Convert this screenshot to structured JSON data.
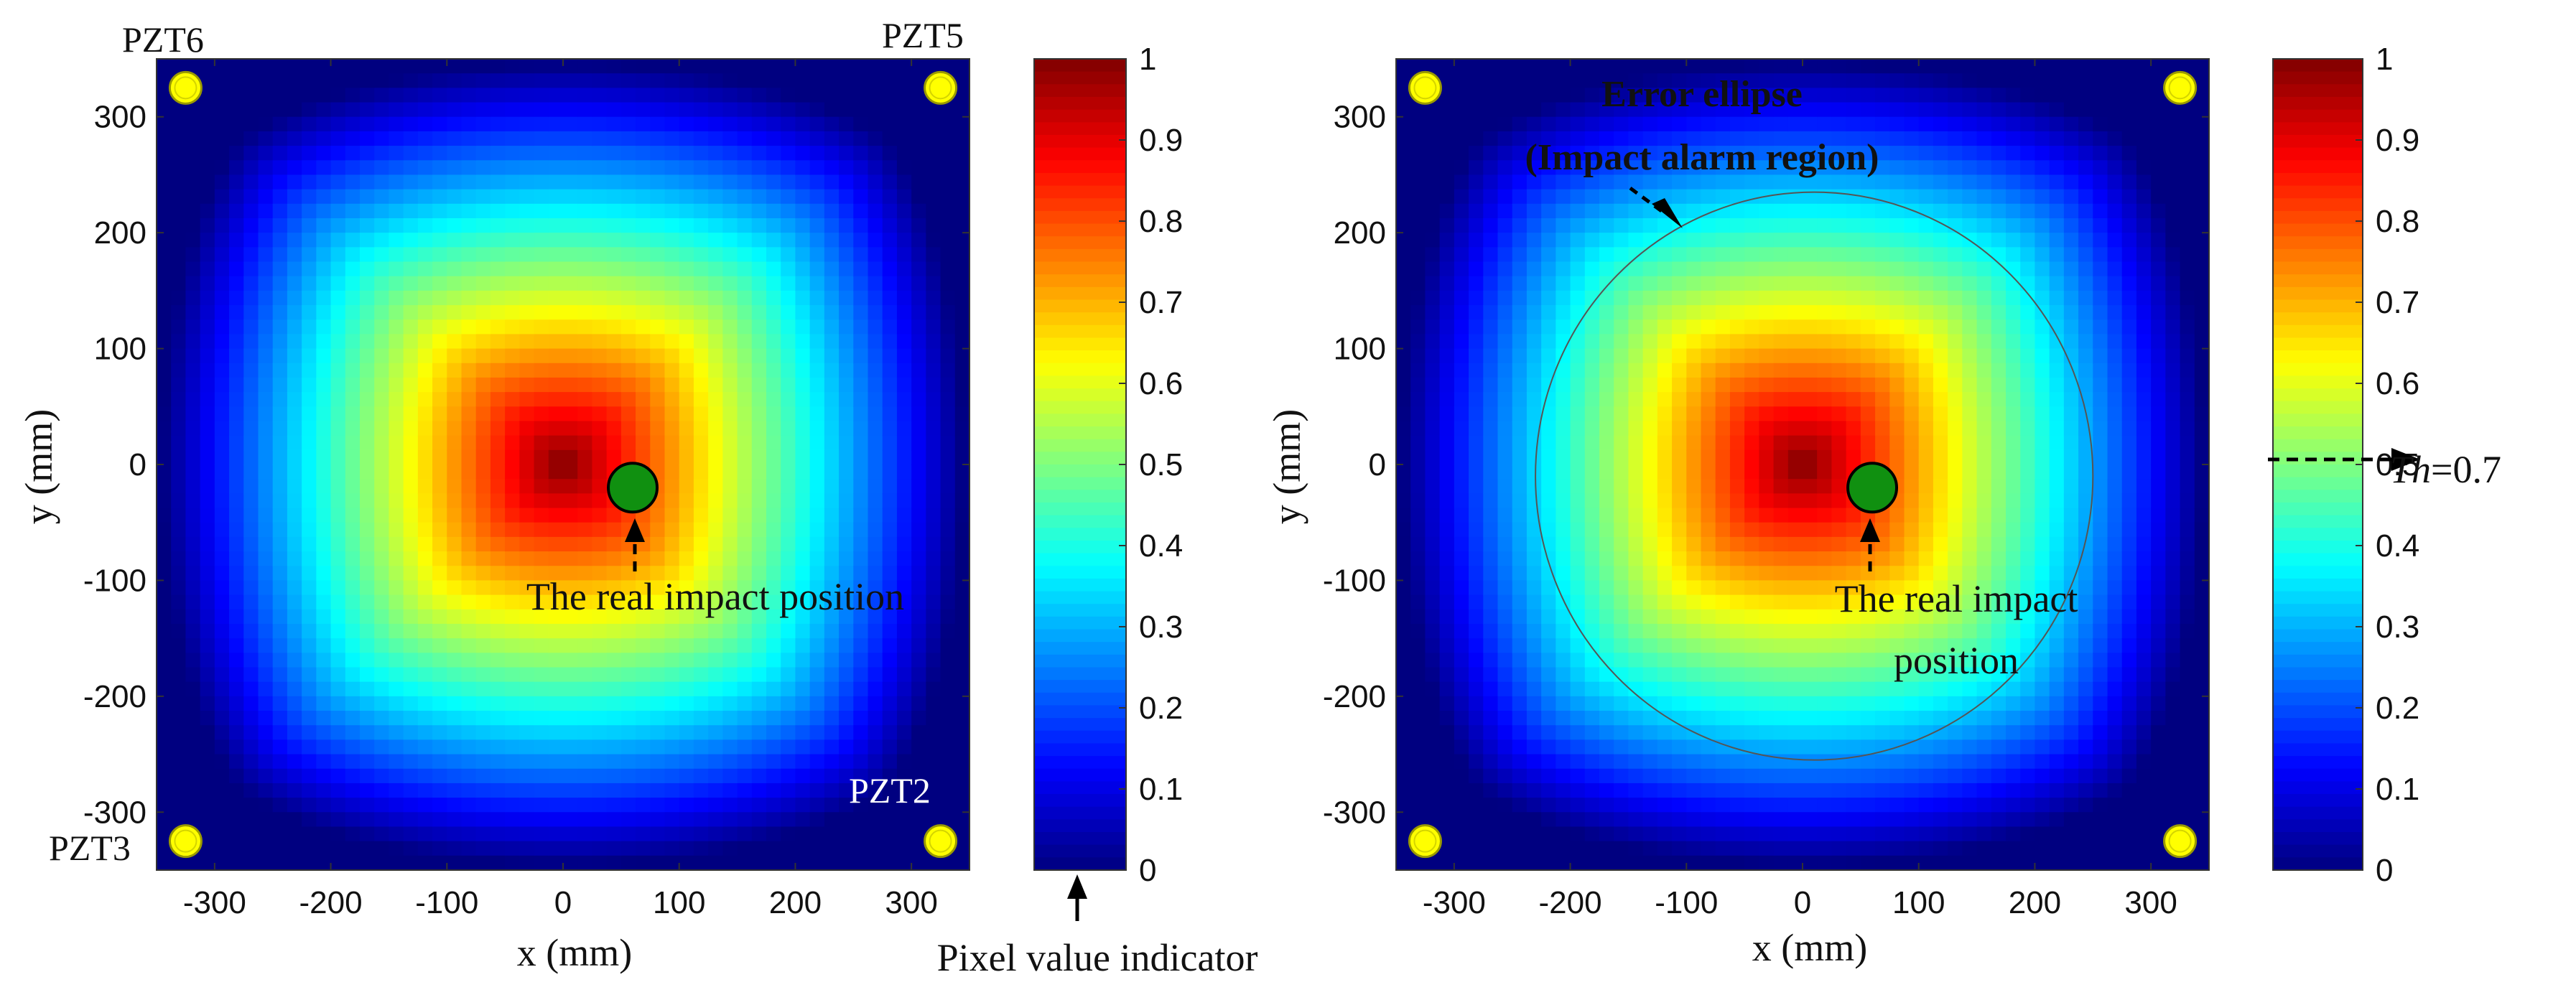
{
  "colors": {
    "sensor_fill": "#ffff00",
    "sensor_stroke": "#9a9a00",
    "impact_fill": "#109010",
    "ellipse_stroke": "#555555",
    "arrow": "#000000"
  },
  "chart_data": [
    {
      "type": "heatmap",
      "title": "",
      "xlabel": "x (mm)",
      "ylabel": "y (mm)",
      "xlim": [
        -350,
        350
      ],
      "ylim": [
        -350,
        350
      ],
      "xticks": [
        -300,
        -200,
        -100,
        0,
        100,
        200,
        300
      ],
      "yticks": [
        300,
        200,
        100,
        0,
        -100,
        -200,
        -300
      ],
      "colormap": "jet",
      "clim": [
        0,
        1
      ],
      "colorbar_ticks": [
        1,
        0.9,
        0.8,
        0.7,
        0.6,
        0.5,
        0.4,
        0.3,
        0.2,
        0.1,
        0
      ],
      "sensors": [
        {
          "name": "PZT6",
          "x": -325,
          "y": 325
        },
        {
          "name": "PZT5",
          "x": 325,
          "y": 325
        },
        {
          "name": "PZT3",
          "x": -325,
          "y": -325
        },
        {
          "name": "PZT2",
          "x": 325,
          "y": -325
        }
      ],
      "peak": {
        "x": 0,
        "y": 0,
        "value": 1.0
      },
      "real_impact": {
        "x": 60,
        "y": -20
      },
      "annotations": {
        "impact_label": "The real impact position",
        "colorbar_arrow_label": "Pixel value indicator"
      }
    },
    {
      "type": "heatmap",
      "title": "",
      "xlabel": "x (mm)",
      "ylabel": "y (mm)",
      "xlim": [
        -350,
        350
      ],
      "ylim": [
        -350,
        350
      ],
      "xticks": [
        -300,
        -200,
        -100,
        0,
        100,
        200,
        300
      ],
      "yticks": [
        300,
        200,
        100,
        0,
        -100,
        -200,
        -300
      ],
      "colormap": "jet",
      "clim": [
        0,
        1
      ],
      "colorbar_ticks": [
        1,
        0.9,
        0.8,
        0.7,
        0.6,
        0.5,
        0.4,
        0.3,
        0.2,
        0.1,
        0
      ],
      "sensors": [
        {
          "x": -325,
          "y": 325
        },
        {
          "x": 325,
          "y": 325
        },
        {
          "x": -325,
          "y": -325
        },
        {
          "x": 325,
          "y": -325
        }
      ],
      "peak": {
        "x": 0,
        "y": 0,
        "value": 1.0
      },
      "real_impact": {
        "x": 60,
        "y": -20
      },
      "error_ellipse": {
        "cx": 10,
        "cy": -10,
        "rx": 240,
        "ry": 245
      },
      "threshold": {
        "label_italic": "Th",
        "label_rest": "=0.7",
        "value": 0.7
      },
      "annotations": {
        "impact_label_line1": "The real impact",
        "impact_label_line2": "position",
        "ellipse_label_line1": "Error ellipse",
        "ellipse_label_line2": "(Impact alarm region)"
      }
    }
  ]
}
